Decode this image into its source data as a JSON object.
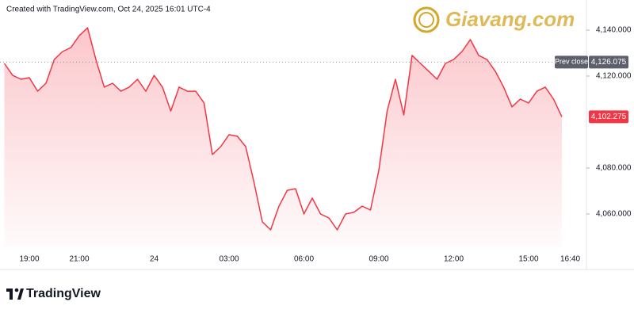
{
  "header": "Created with TradingView.com, Oct 24, 2025 16:01 UTC-4",
  "watermark": "Giavang.com",
  "footer": "TradingView",
  "chart_data": {
    "type": "line",
    "color": "#f23645",
    "categories": [
      null,
      null,
      null,
      "19:00",
      null,
      null,
      null,
      null,
      null,
      "21:00",
      null,
      null,
      null,
      null,
      null,
      null,
      null,
      null,
      "24",
      null,
      null,
      null,
      null,
      null,
      null,
      null,
      null,
      "03:00",
      null,
      null,
      null,
      null,
      null,
      null,
      null,
      null,
      "06:00",
      null,
      null,
      null,
      null,
      null,
      null,
      null,
      null,
      "09:00",
      null,
      null,
      null,
      null,
      null,
      null,
      null,
      null,
      "12:00",
      null,
      null,
      null,
      null,
      null,
      null,
      null,
      null,
      "15:00",
      null,
      null,
      null,
      null,
      "16:40"
    ],
    "series": [
      {
        "values": [
          4125.5,
          4120.3,
          4118.6,
          4119.3,
          4113.4,
          4116.9,
          4127.2,
          4130.7,
          4132.4,
          4137.6,
          4141.0,
          4127.2,
          4115.2,
          4116.9,
          4113.4,
          4115.2,
          4118.6,
          4113.4,
          4120.3,
          4115.2,
          4104.8,
          4115.2,
          4113.4,
          4113.4,
          4108.3,
          4085.9,
          4089.3,
          4094.5,
          4093.8,
          4089.3,
          4073.8,
          4056.6,
          4053.1,
          4063.4,
          4070.3,
          4071.0,
          4060.0,
          4066.9,
          4060.0,
          4058.3,
          4053.1,
          4060.0,
          4060.7,
          4063.4,
          4061.7,
          4079.0,
          4104.8,
          4118.6,
          4103.1,
          4129.0,
          4125.5,
          4122.1,
          4118.6,
          4125.5,
          4127.2,
          4130.7,
          4135.9,
          4129.0,
          4127.2,
          4122.1,
          4115.2,
          4106.6,
          4110.0,
          4108.3,
          4113.4,
          4115.2,
          4110.0,
          4102.275,
          null
        ]
      }
    ],
    "ylim": [
      4045.5,
      4153.1
    ],
    "yticks": [
      {
        "value": 4060,
        "label": "4,060.000"
      },
      {
        "value": 4080,
        "label": "4,080.000"
      },
      {
        "value": 4120,
        "label": "4,120.000"
      },
      {
        "value": 4140,
        "label": "4,140.000"
      }
    ],
    "prev_close": {
      "name": "Prev close",
      "value": 4126.075,
      "label": "4,126.075"
    },
    "last_price": {
      "value": 4102.275,
      "label": "4,102.275"
    }
  }
}
